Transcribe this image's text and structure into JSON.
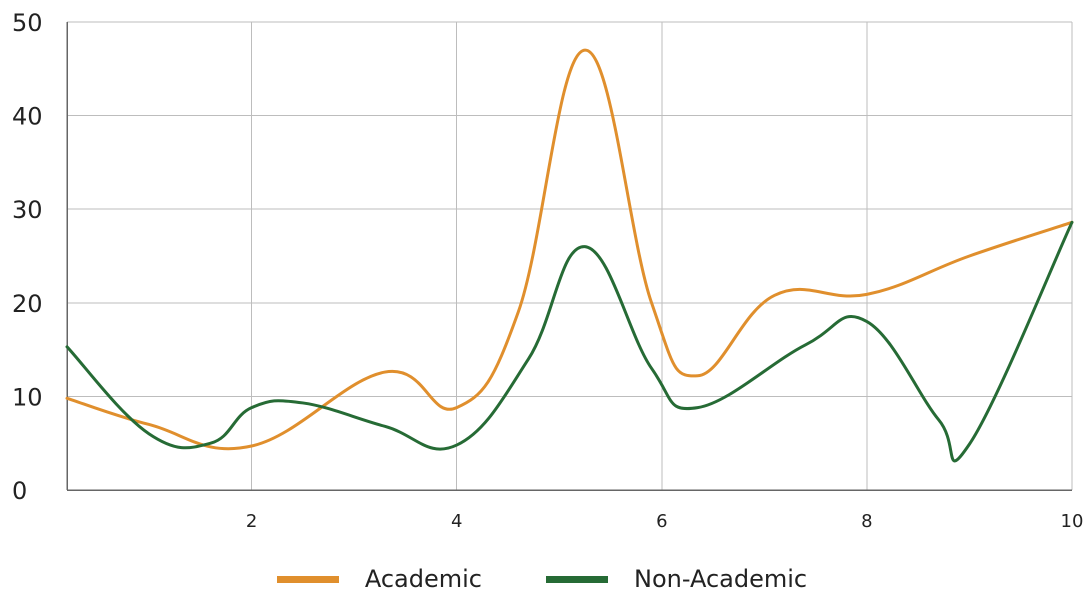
{
  "chart_data": {
    "type": "line",
    "title": "",
    "xlabel": "",
    "ylabel": "",
    "xlim": [
      0.2,
      10
    ],
    "ylim": [
      0,
      50
    ],
    "x_ticks": [
      2,
      4,
      6,
      8,
      10
    ],
    "y_ticks": [
      0,
      10,
      20,
      30,
      40,
      50
    ],
    "grid": true,
    "legend_position": "bottom",
    "series": [
      {
        "name": "Academic",
        "color": "#e08f2d",
        "points": [
          {
            "x": 0.2,
            "y": 9.8
          },
          {
            "x": 1.0,
            "y": 7.0
          },
          {
            "x": 2.0,
            "y": 4.7
          },
          {
            "x": 3.3,
            "y": 12.6
          },
          {
            "x": 4.0,
            "y": 8.8
          },
          {
            "x": 4.6,
            "y": 19.0
          },
          {
            "x": 5.25,
            "y": 47.0
          },
          {
            "x": 5.9,
            "y": 20.0
          },
          {
            "x": 6.35,
            "y": 12.2
          },
          {
            "x": 7.1,
            "y": 20.8
          },
          {
            "x": 8.0,
            "y": 20.9
          },
          {
            "x": 9.0,
            "y": 25.0
          },
          {
            "x": 10.0,
            "y": 28.6
          }
        ]
      },
      {
        "name": "Non-Academic",
        "color": "#266b35",
        "points": [
          {
            "x": 0.2,
            "y": 15.3
          },
          {
            "x": 1.0,
            "y": 6.0
          },
          {
            "x": 1.6,
            "y": 5.0
          },
          {
            "x": 2.0,
            "y": 8.8
          },
          {
            "x": 2.5,
            "y": 9.3
          },
          {
            "x": 3.3,
            "y": 6.8
          },
          {
            "x": 4.0,
            "y": 4.8
          },
          {
            "x": 4.7,
            "y": 14.0
          },
          {
            "x": 5.25,
            "y": 26.0
          },
          {
            "x": 5.9,
            "y": 13.0
          },
          {
            "x": 6.35,
            "y": 8.8
          },
          {
            "x": 7.4,
            "y": 15.5
          },
          {
            "x": 8.0,
            "y": 18.0
          },
          {
            "x": 8.7,
            "y": 7.5
          },
          {
            "x": 9.0,
            "y": 4.9
          },
          {
            "x": 10.0,
            "y": 28.6
          }
        ]
      }
    ]
  }
}
